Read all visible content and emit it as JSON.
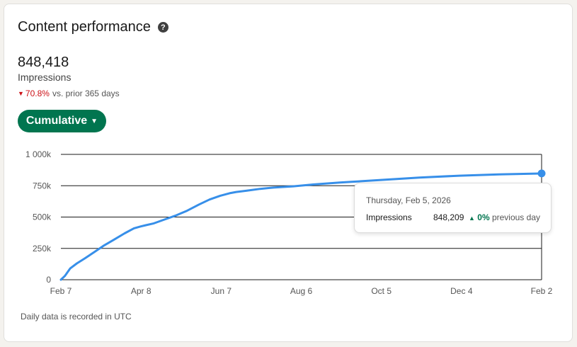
{
  "header": {
    "title": "Content performance",
    "help_icon": "question-circle-icon"
  },
  "metric": {
    "value": "848,418",
    "label": "Impressions",
    "change_value": "70.8%",
    "change_direction": "down",
    "change_suffix": "vs. prior 365 days"
  },
  "dropdown": {
    "label": "Cumulative",
    "caret_icon": "caret-down-icon"
  },
  "colors": {
    "accent": "#01754f",
    "line": "#378fe9",
    "negative": "#cc1016"
  },
  "chart_data": {
    "type": "line",
    "yticks": [
      "0",
      "250k",
      "500k",
      "750k",
      "1 000k"
    ],
    "xticks": [
      "Feb 7",
      "Apr 8",
      "Jun 7",
      "Aug 6",
      "Oct 5",
      "Dec 4",
      "Feb 2"
    ],
    "ylim": [
      0,
      1000000
    ],
    "grid": true,
    "series": [
      {
        "x": [
          0,
          3,
          7,
          12,
          18,
          25,
          32,
          40,
          48,
          55,
          60,
          64,
          70,
          78,
          86,
          95,
          104,
          112,
          120,
          127,
          132,
          140,
          150,
          160,
          175,
          190,
          210,
          240,
          270,
          300,
          330,
          362
        ],
        "values": [
          0,
          30000,
          90000,
          130000,
          170000,
          220000,
          270000,
          320000,
          370000,
          410000,
          425000,
          435000,
          450000,
          480000,
          510000,
          550000,
          600000,
          640000,
          670000,
          690000,
          700000,
          710000,
          725000,
          735000,
          745000,
          760000,
          775000,
          795000,
          815000,
          830000,
          840000,
          848209
        ]
      }
    ]
  },
  "tooltip": {
    "date": "Thursday, Feb 5, 2026",
    "label": "Impressions",
    "value": "848,209",
    "change": "0%",
    "change_suffix": "previous day"
  },
  "footer": {
    "note": "Daily data is recorded in UTC"
  }
}
